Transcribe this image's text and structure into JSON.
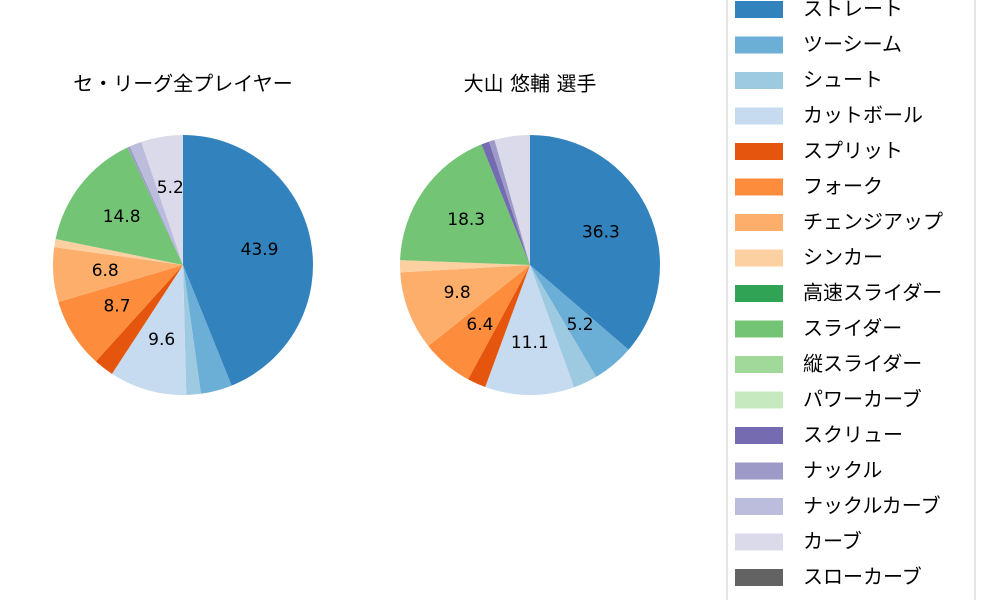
{
  "chart_data": [
    {
      "type": "pie",
      "title": "セ・リーグ全プレイヤー",
      "values": [
        43.9,
        3.9,
        1.8,
        9.6,
        2.5,
        8.7,
        6.8,
        1.0,
        0,
        14.8,
        0,
        0,
        0,
        0.3,
        1.5,
        5.2,
        0
      ]
    },
    {
      "type": "pie",
      "title": "大山 悠輔  選手",
      "values": [
        36.3,
        5.2,
        3.0,
        11.1,
        2.3,
        6.4,
        9.8,
        1.5,
        0,
        18.3,
        0,
        0,
        1.0,
        0.7,
        0,
        4.4,
        0
      ]
    }
  ],
  "legend": {
    "labels": [
      "ストレート",
      "ツーシーム",
      "シュート",
      "カットボール",
      "スプリット",
      "フォーク",
      "チェンジアップ",
      "シンカー",
      "高速スライダー",
      "スライダー",
      "縦スライダー",
      "パワーカーブ",
      "スクリュー",
      "ナックル",
      "ナックルカーブ",
      "カーブ",
      "スローカーブ"
    ],
    "colors": [
      "#3182bd",
      "#6baed6",
      "#9ecae1",
      "#c6dbef",
      "#e6550d",
      "#fd8d3c",
      "#fdae6b",
      "#fdd0a2",
      "#31a354",
      "#74c476",
      "#a1d99b",
      "#c7e9c0",
      "#756bb1",
      "#9e9ac8",
      "#bcbddc",
      "#dadaeb",
      "#636363"
    ]
  }
}
